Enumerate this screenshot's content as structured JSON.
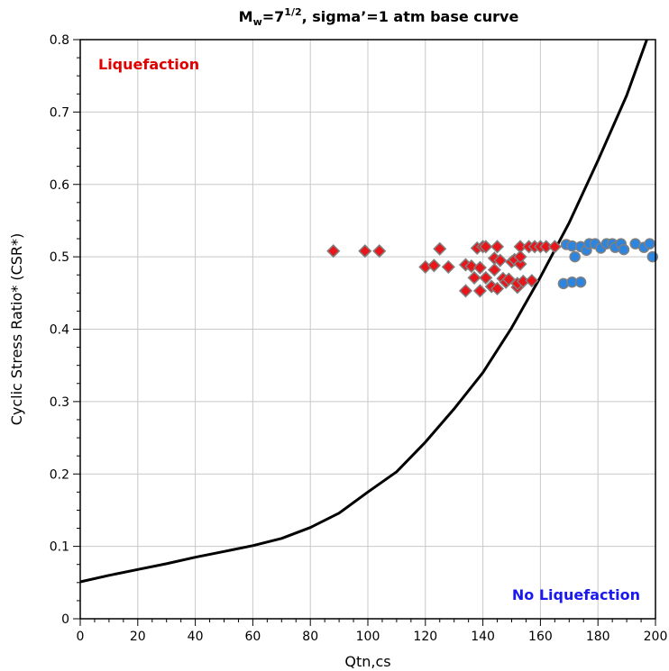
{
  "chart_data": {
    "type": "scatter",
    "title": {
      "prefix": "M",
      "subscript": "w",
      "middle": "=7",
      "superscript": "1/2",
      "suffix": ", sigmaʼ=1 atm base curve"
    },
    "xlabel": "Qtn,cs",
    "ylabel": "Cyclic Stress Ratio* (CSR*)",
    "xlim": [
      0,
      200
    ],
    "ylim": [
      0,
      0.8
    ],
    "x_ticks": [
      0,
      20,
      40,
      60,
      80,
      100,
      120,
      140,
      160,
      180,
      200
    ],
    "x_tick_labels": [
      "0",
      "20",
      "40",
      "60",
      "80",
      "100",
      "120",
      "140",
      "160",
      "180",
      "200"
    ],
    "y_ticks": [
      0,
      0.1,
      0.2,
      0.3,
      0.4,
      0.5,
      0.6,
      0.7,
      0.8
    ],
    "y_tick_labels": [
      "0",
      "0.1",
      "0.2",
      "0.3",
      "0.4",
      "0.5",
      "0.6",
      "0.7",
      "0.8"
    ],
    "grid": true,
    "annotations": [
      {
        "text": "Liquefaction",
        "position": "top-left",
        "color": "#e00000"
      },
      {
        "text": "No Liquefaction",
        "position": "bottom-right",
        "color": "#1a1aee"
      }
    ],
    "series": [
      {
        "type": "line",
        "color": "#000000",
        "x": [
          0,
          10,
          20,
          30,
          40,
          50,
          60,
          70,
          80,
          90,
          100,
          110,
          120,
          130,
          140,
          150,
          160,
          170,
          180,
          190,
          197
        ],
        "y": [
          0.051,
          0.06,
          0.068,
          0.076,
          0.085,
          0.093,
          0.101,
          0.111,
          0.126,
          0.146,
          0.175,
          0.203,
          0.244,
          0.29,
          0.34,
          0.402,
          0.472,
          0.547,
          0.633,
          0.723,
          0.8
        ]
      },
      {
        "type": "scatter",
        "marker": "diamond",
        "color": "#e8161a",
        "edge_color": "#7f7f7f",
        "points": [
          [
            88,
            0.508
          ],
          [
            99,
            0.508
          ],
          [
            104,
            0.508
          ],
          [
            120,
            0.486
          ],
          [
            123,
            0.488
          ],
          [
            125,
            0.511
          ],
          [
            128,
            0.486
          ],
          [
            134,
            0.489
          ],
          [
            134,
            0.453
          ],
          [
            136,
            0.487
          ],
          [
            137,
            0.471
          ],
          [
            138,
            0.512
          ],
          [
            139,
            0.485
          ],
          [
            139,
            0.453
          ],
          [
            140,
            0.514
          ],
          [
            141,
            0.514
          ],
          [
            141,
            0.471
          ],
          [
            143,
            0.459
          ],
          [
            144,
            0.498
          ],
          [
            144,
            0.482
          ],
          [
            145,
            0.514
          ],
          [
            145,
            0.456
          ],
          [
            146,
            0.495
          ],
          [
            147,
            0.47
          ],
          [
            148,
            0.465
          ],
          [
            149,
            0.469
          ],
          [
            150,
            0.493
          ],
          [
            151,
            0.496
          ],
          [
            152,
            0.458
          ],
          [
            152,
            0.463
          ],
          [
            153,
            0.514
          ],
          [
            153,
            0.49
          ],
          [
            153,
            0.5
          ],
          [
            154,
            0.466
          ],
          [
            156,
            0.514
          ],
          [
            157,
            0.467
          ],
          [
            158,
            0.514
          ],
          [
            160,
            0.514
          ],
          [
            162,
            0.514
          ],
          [
            165,
            0.514
          ]
        ]
      },
      {
        "type": "scatter",
        "marker": "circle",
        "color": "#2d85df",
        "edge_color": "#7f7f7f",
        "points": [
          [
            168,
            0.463
          ],
          [
            171,
            0.465
          ],
          [
            174,
            0.465
          ],
          [
            169,
            0.517
          ],
          [
            171,
            0.515
          ],
          [
            172,
            0.5
          ],
          [
            174,
            0.514
          ],
          [
            176,
            0.509
          ],
          [
            177,
            0.518
          ],
          [
            179,
            0.518
          ],
          [
            181,
            0.512
          ],
          [
            183,
            0.518
          ],
          [
            185,
            0.518
          ],
          [
            186,
            0.513
          ],
          [
            188,
            0.518
          ],
          [
            189,
            0.51
          ],
          [
            193,
            0.518
          ],
          [
            196,
            0.513
          ],
          [
            198,
            0.518
          ],
          [
            199,
            0.5
          ]
        ]
      }
    ]
  }
}
